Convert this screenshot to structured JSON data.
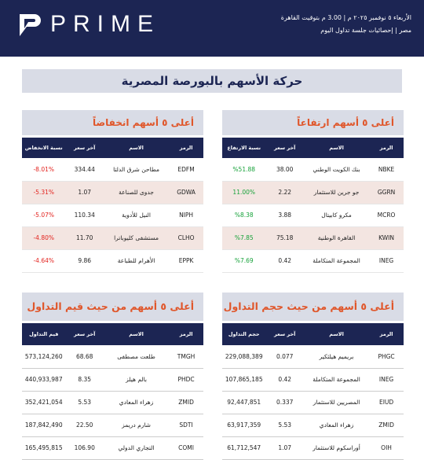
{
  "header": {
    "logo": "PRIME",
    "date": "الأربعاء ٥ نوفمبر ٢٠٢٥ م | 3.00 م بتوقيت القاهرة",
    "subtitle": "مصر | إحصائيات جلسة تداول اليوم"
  },
  "title": "حركة الأسهم بالبورصة المصرية",
  "tables": [
    {
      "title": "أعلى ٥ أسهم ارتفاعاً",
      "columns": [
        "الرمز",
        "الاسم",
        "آخر سعر",
        "نسبة الارتفاع"
      ],
      "rows": [
        [
          "NBKE",
          "بنك الكويت الوطني",
          "38.00",
          "%51.88"
        ],
        [
          "GGRN",
          "جو جرين للاستثمار",
          "2.22",
          "11.00%"
        ],
        [
          "MCRO",
          "مكرو كابيتال",
          "3.88",
          "%8.38"
        ],
        [
          "KWIN",
          "القاهرة الوطنية",
          "75.18",
          "%7.85"
        ],
        [
          "INEG",
          "المجموعة المتكاملة",
          "0.42",
          "%7.69"
        ]
      ]
    },
    {
      "title": "أعلى ٥ أسهم انخفاضاً",
      "columns": [
        "الرمز",
        "الاسم",
        "آخر سعر",
        "نسبة الانخفاض"
      ],
      "rows": [
        [
          "EDFM",
          "مطاحن شرق الدلتا",
          "334.44",
          "-8.01%"
        ],
        [
          "GDWA",
          "جدوى للصناعة",
          "1.07",
          "-5.31%"
        ],
        [
          "NIPH",
          "النيل للأدوية",
          "110.34",
          "-5.07%"
        ],
        [
          "CLHO",
          "مستشفى كليوباترا",
          "11.70",
          "-4.80%"
        ],
        [
          "EPPK",
          "الأهرام للطباعة",
          "9.86",
          "-4.64%"
        ]
      ]
    },
    {
      "title": "أعلى ٥ أسهم من حيث حجم التداول",
      "columns": [
        "الرمز",
        "الاسم",
        "آخر سعر",
        "حجم التداول"
      ],
      "rows": [
        [
          "PHGC",
          "بريميم هيلثكير",
          "0.077",
          "229,088,389"
        ],
        [
          "INEG",
          "المجموعة المتكاملة",
          "0.42",
          "107,865,185"
        ],
        [
          "EIUD",
          "المصريين للاستثمار",
          "0.337",
          "92,447,851"
        ],
        [
          "ZMID",
          "زهراء المعادي",
          "5.53",
          "63,917,359"
        ],
        [
          "OIH",
          "أوراسكوم للاستثمار",
          "1.07",
          "61,712,547"
        ]
      ]
    },
    {
      "title": "أعلى ٥ أسهم من حيث قيم التداول",
      "columns": [
        "الرمز",
        "الاسم",
        "آخر سعر",
        "قيم التداول"
      ],
      "rows": [
        [
          "TMGH",
          "طلعت مصطفى",
          "68.68",
          "573,124,260"
        ],
        [
          "PHDC",
          "بالم هيلز",
          "8.35",
          "440,933,987"
        ],
        [
          "ZMID",
          "زهراء المعادي",
          "5.53",
          "352,421,054"
        ],
        [
          "SDTI",
          "شارم دريمز",
          "22.50",
          "187,842,490"
        ],
        [
          "COMI",
          "التجاري الدولي",
          "106.90",
          "165,495,815"
        ]
      ]
    }
  ]
}
